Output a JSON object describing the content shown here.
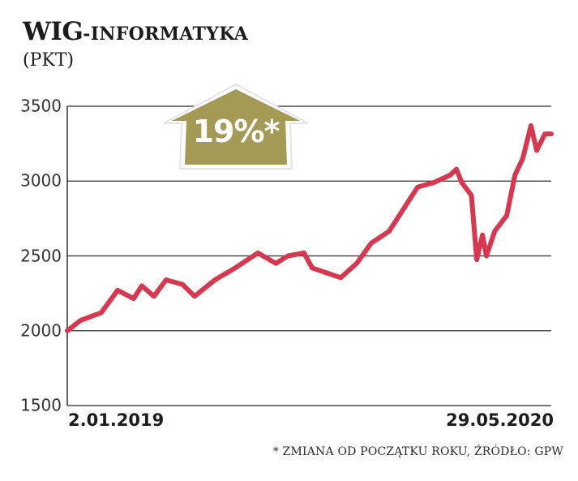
{
  "title": {
    "main": "WIG",
    "sub": "-INFORMATYKA",
    "unit": "(PKT)"
  },
  "badge": {
    "label": "19%*",
    "color": "#a59a55",
    "direction": "up"
  },
  "footnote": "* ZMIANA OD POCZĄTKU ROKU, ŹRÓDŁO: GPW",
  "colors": {
    "line": "#d6384f",
    "grid": "#2b2b2b",
    "text": "#1c1c1c"
  },
  "chart_data": {
    "type": "line",
    "title": "WIG-INFORMATYKA (PKT)",
    "xlabel": "",
    "ylabel": "PKT",
    "ylim": [
      1500,
      3500
    ],
    "yticks": [
      1500,
      2000,
      2500,
      3000,
      3500
    ],
    "xtick_labels": [
      "2.01.2019",
      "29.05.2020"
    ],
    "grid": true,
    "legend": null,
    "annotation": "19%* (zmiana od początku roku)",
    "series": [
      {
        "name": "WIG-informatyka",
        "x_frac": [
          0,
          0.028,
          0.07,
          0.104,
          0.137,
          0.154,
          0.179,
          0.204,
          0.238,
          0.263,
          0.305,
          0.347,
          0.394,
          0.431,
          0.456,
          0.489,
          0.506,
          0.565,
          0.598,
          0.628,
          0.665,
          0.698,
          0.724,
          0.757,
          0.791,
          0.804,
          0.815,
          0.835,
          0.846,
          0.858,
          0.866,
          0.883,
          0.908,
          0.925,
          0.941,
          0.958,
          0.97,
          0.987,
          1.0
        ],
        "values": [
          2000,
          2070,
          2120,
          2270,
          2215,
          2300,
          2230,
          2340,
          2310,
          2230,
          2340,
          2420,
          2520,
          2450,
          2500,
          2520,
          2420,
          2355,
          2450,
          2585,
          2665,
          2830,
          2960,
          2990,
          3040,
          3080,
          2990,
          2905,
          2475,
          2640,
          2500,
          2665,
          2770,
          3040,
          3150,
          3370,
          3205,
          3315,
          3315
        ]
      }
    ]
  }
}
